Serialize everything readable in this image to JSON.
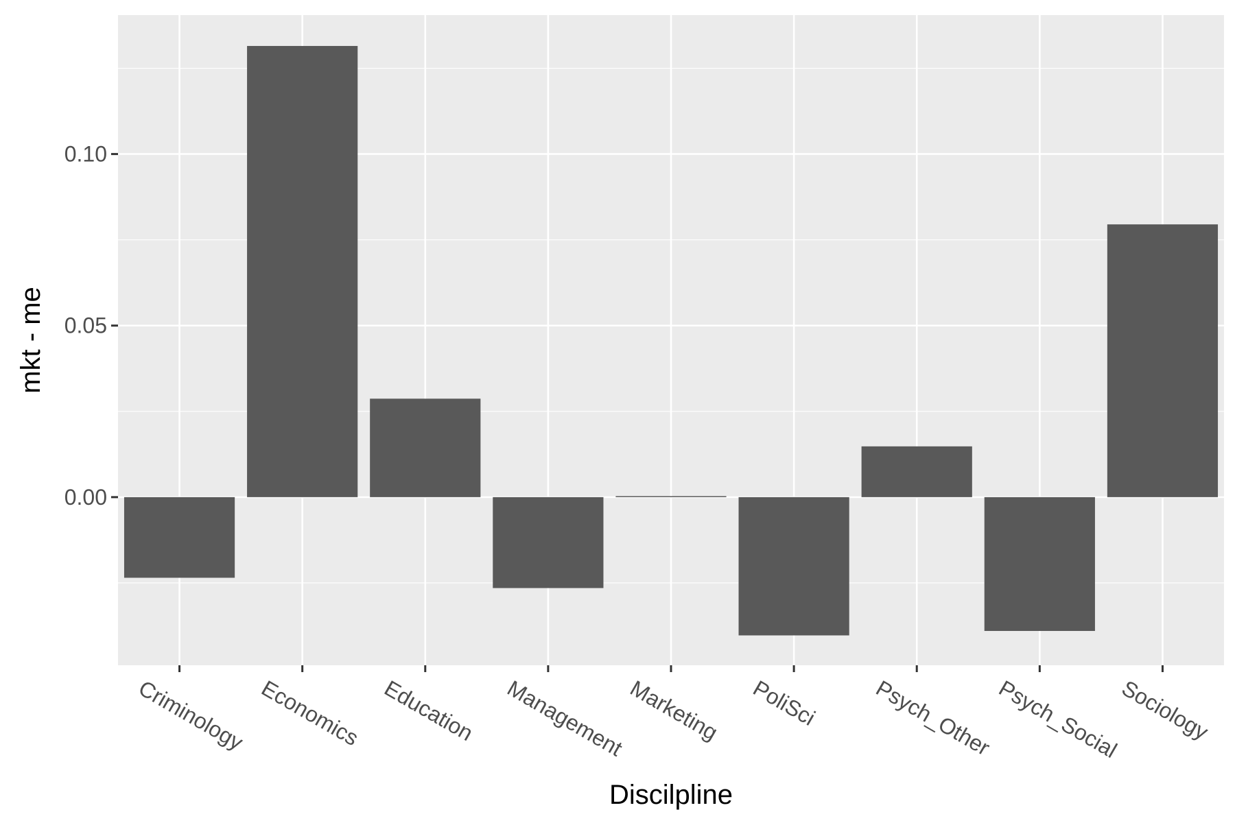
{
  "chart_data": {
    "type": "bar",
    "title": "",
    "xlabel": "Discilpline",
    "ylabel": "mkt - me",
    "categories": [
      "Criminology",
      "Economics",
      "Education",
      "Management",
      "Marketing",
      "PoliSci",
      "Psych_Other",
      "Psych_Social",
      "Sociology"
    ],
    "values": [
      -0.0235,
      0.1315,
      0.0287,
      -0.0265,
      0.0003,
      -0.0403,
      0.0148,
      -0.039,
      0.0795
    ],
    "ylim": [
      -0.049,
      0.1405
    ],
    "yticks": [
      0.0,
      0.05,
      0.1
    ],
    "ytick_labels": [
      "0.00",
      "0.05",
      "0.10"
    ],
    "grid": true,
    "colors": {
      "bar": "#595959",
      "panel": "#ebebeb",
      "grid": "#ffffff",
      "tick": "#333333"
    }
  }
}
